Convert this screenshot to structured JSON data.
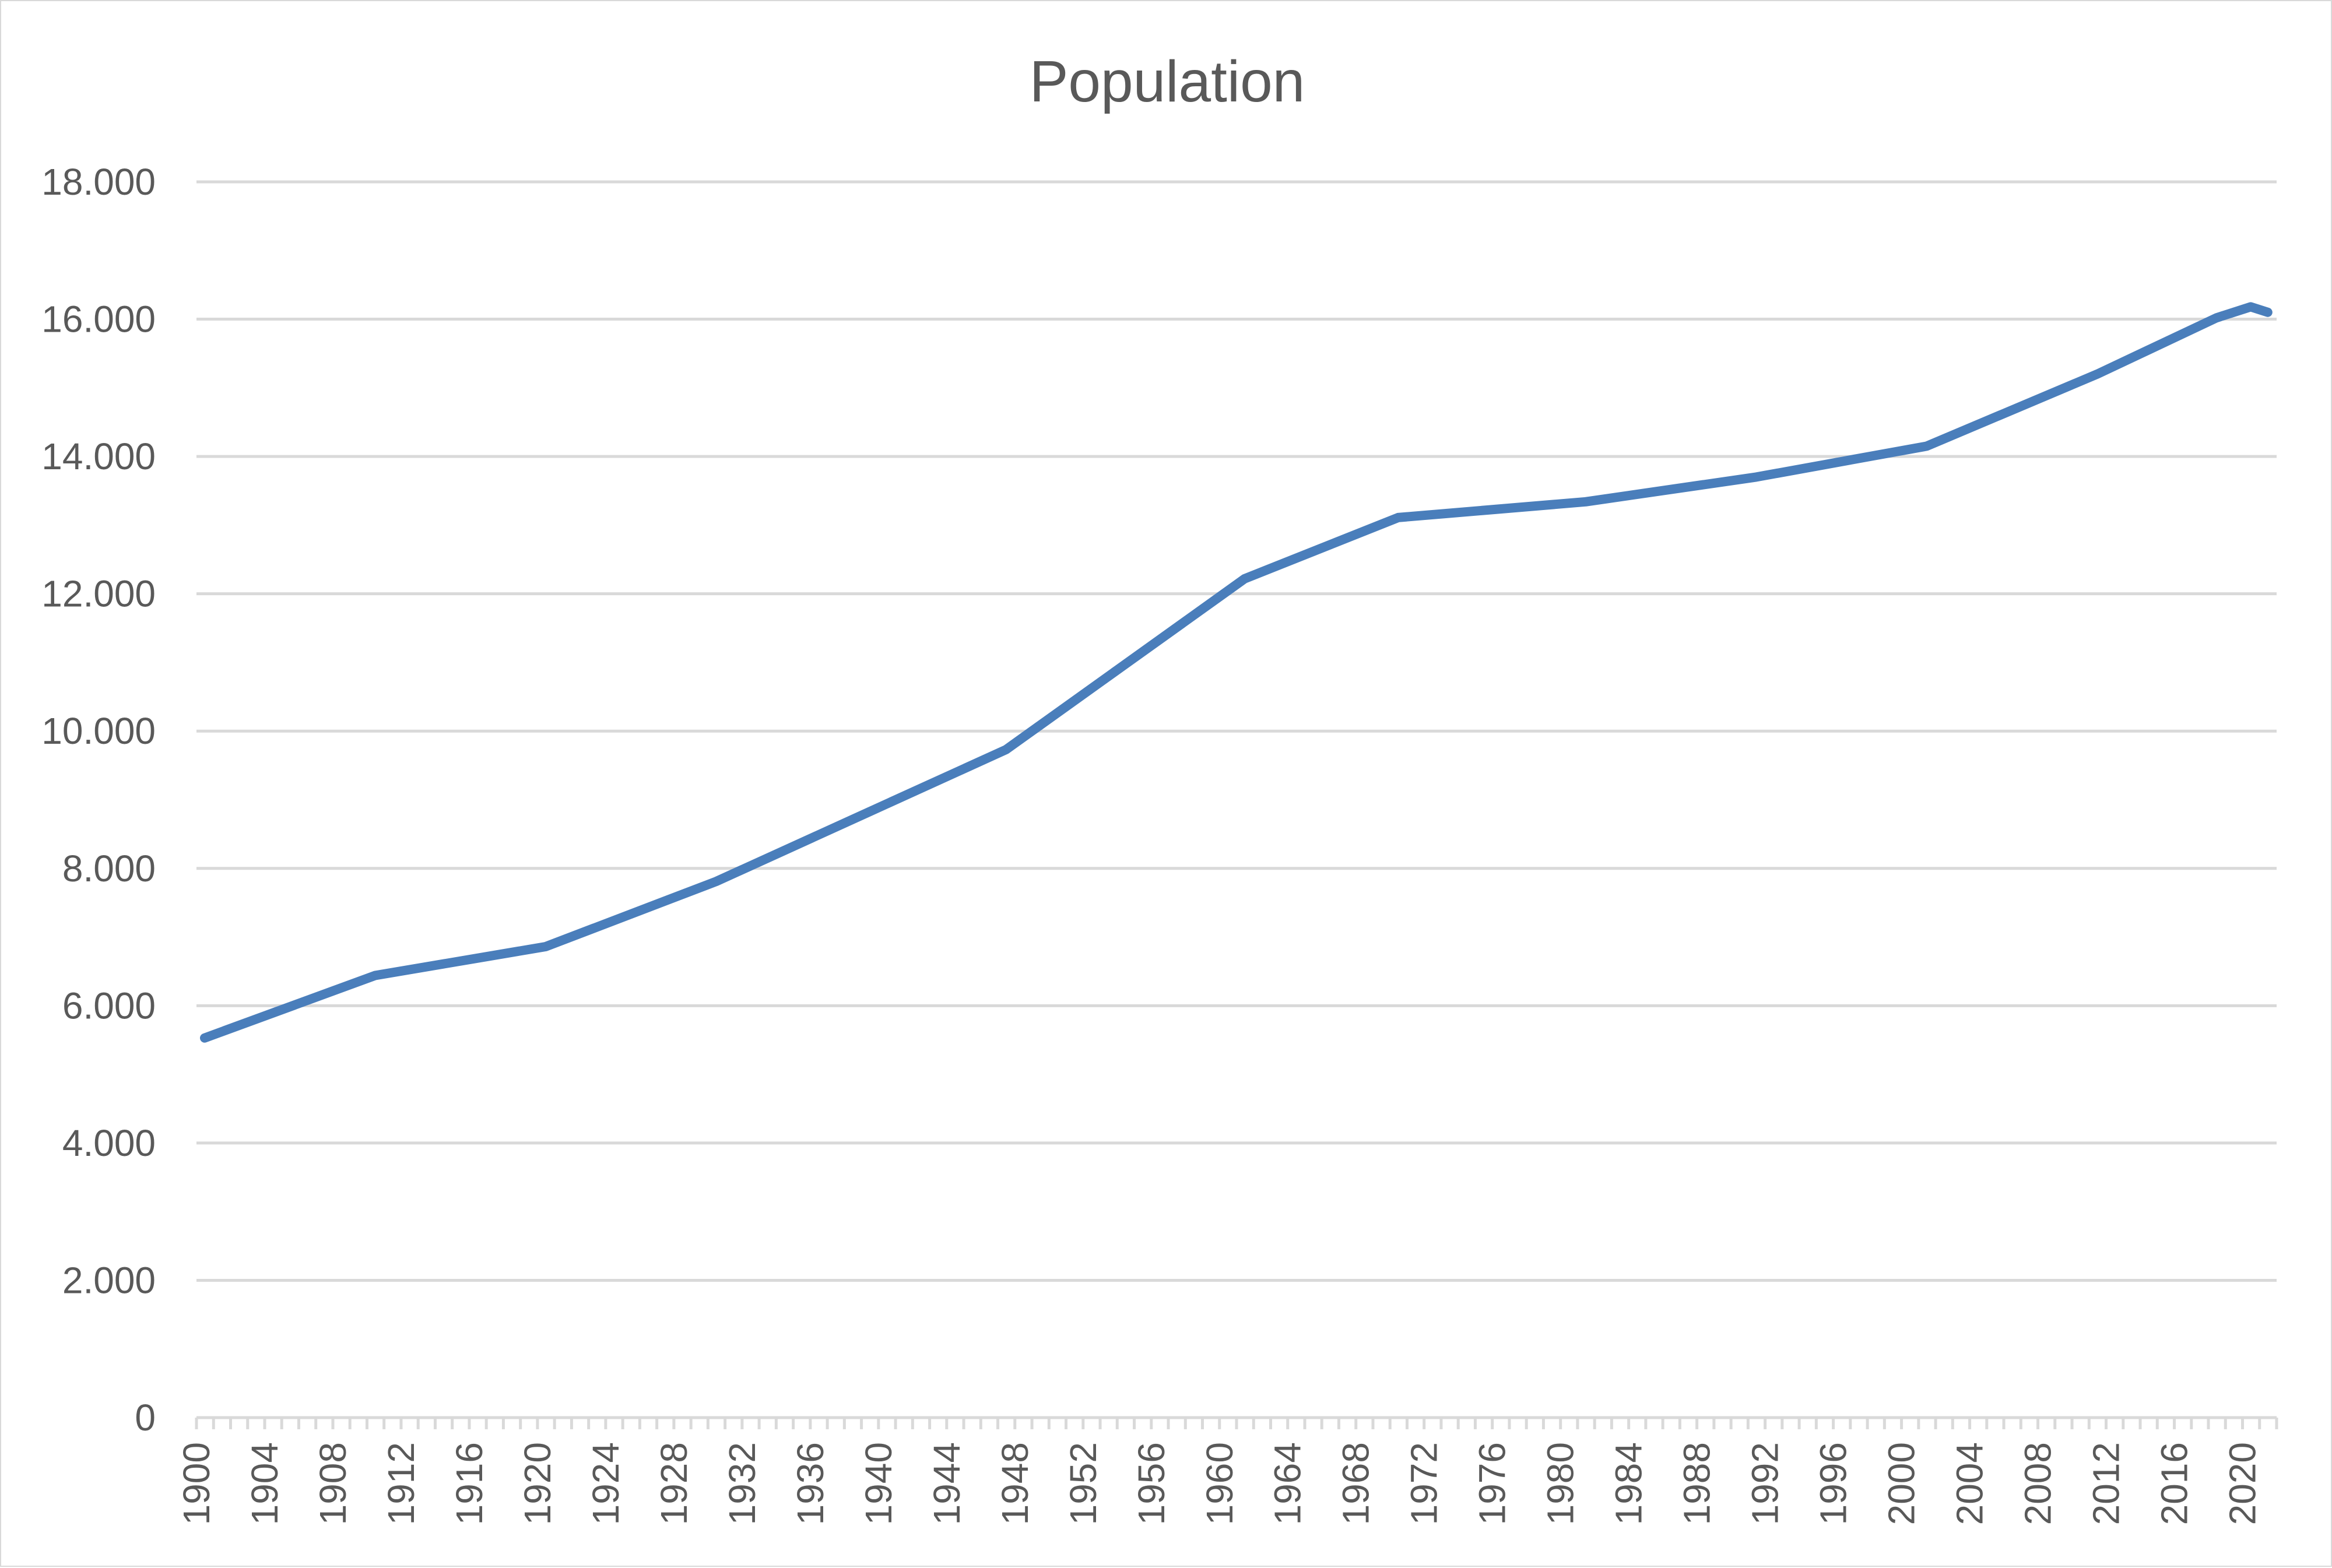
{
  "chart_data": {
    "type": "line",
    "title": "Population",
    "xlabel": "",
    "ylabel": "",
    "x_range": [
      1900,
      2021
    ],
    "x_tick_step": 4,
    "ylim": [
      0,
      18000
    ],
    "y_tick_step": 2000,
    "y_tick_labels": [
      "0",
      "2.000",
      "4.000",
      "6.000",
      "8.000",
      "10.000",
      "12.000",
      "14.000",
      "16.000",
      "18.000"
    ],
    "grid": true,
    "legend": "none",
    "series": [
      {
        "color": "#4a7ebb",
        "points": [
          [
            1900,
            5530
          ],
          [
            1910,
            6440
          ],
          [
            1920,
            6860
          ],
          [
            1930,
            7810
          ],
          [
            1947,
            9730
          ],
          [
            1961,
            12220
          ],
          [
            1970,
            13110
          ],
          [
            1981,
            13340
          ],
          [
            1991,
            13700
          ],
          [
            2001,
            14150
          ],
          [
            2011,
            15200
          ],
          [
            2018,
            16020
          ],
          [
            2020,
            16180
          ],
          [
            2021,
            16100
          ]
        ]
      }
    ]
  }
}
